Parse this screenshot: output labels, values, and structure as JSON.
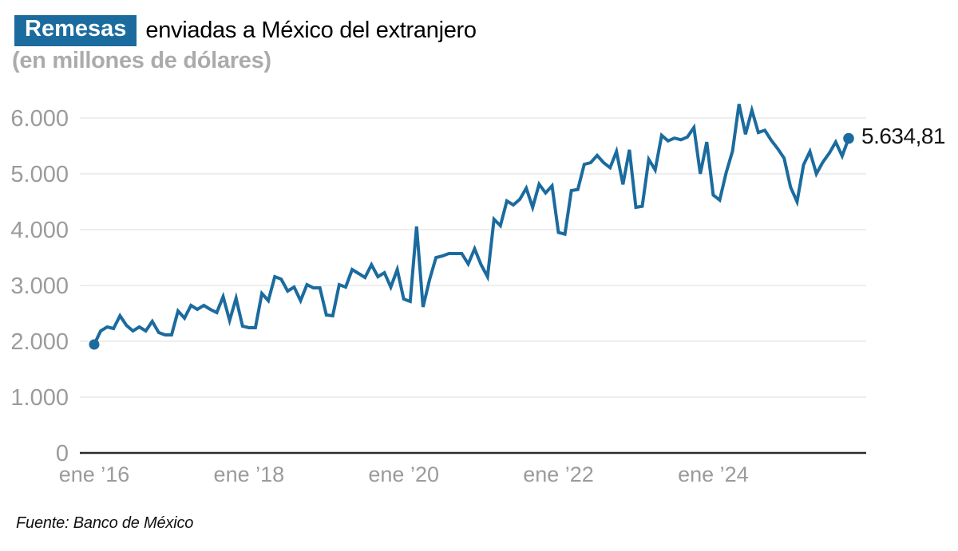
{
  "header": {
    "badge": "Remesas",
    "title": "enviadas a México del extranjero",
    "subtitle": "(en millones de dólares)"
  },
  "end_label": "5.634,81",
  "footer": {
    "source": "Fuente: Banco de México"
  },
  "colors": {
    "line": "#1b6b9e",
    "badge_bg": "#1b6b9e",
    "grid": "#e3e3e3",
    "zero_axis": "#2b2b2b",
    "tick_text": "#9b9b9b",
    "title_text": "#000000",
    "subtitle_text": "#ababab",
    "end_label_text": "#151515"
  },
  "chart_data": {
    "type": "line",
    "title": "Remesas enviadas a México del extranjero",
    "subtitle": "(en millones de dólares)",
    "unit": "millones de dólares",
    "frequency": "monthly",
    "x_range": {
      "start": "ene 2016",
      "end": "oct 2025"
    },
    "x_tick_labels": [
      "ene ’16",
      "ene ’18",
      "ene ’20",
      "ene ’22",
      "ene ’24"
    ],
    "x_tick_month_index": [
      0,
      24,
      48,
      72,
      96
    ],
    "y_tick_labels": [
      "0",
      "1.000",
      "2.000",
      "3.000",
      "4.000",
      "5.000",
      "6.000"
    ],
    "y_tick_values": [
      0,
      1000,
      2000,
      3000,
      4000,
      5000,
      6000
    ],
    "ylim": [
      0,
      6500
    ],
    "grid": "horizontal",
    "legend": "none",
    "last_value": 5634.81,
    "last_value_label": "5.634,81",
    "series": [
      {
        "name": "Remesas (millones de dólares)",
        "values": [
          1943,
          2186,
          2257,
          2229,
          2457,
          2286,
          2186,
          2257,
          2186,
          2357,
          2157,
          2114,
          2114,
          2543,
          2414,
          2643,
          2571,
          2643,
          2571,
          2514,
          2800,
          2371,
          2771,
          2271,
          2243,
          2243,
          2857,
          2729,
          3157,
          3114,
          2900,
          2971,
          2729,
          3014,
          2957,
          2957,
          2471,
          2457,
          3014,
          2971,
          3286,
          3214,
          3143,
          3371,
          3157,
          3229,
          2971,
          3286,
          2757,
          2714,
          4057,
          2614,
          3100,
          3500,
          3529,
          3571,
          3571,
          3571,
          3386,
          3657,
          3371,
          3157,
          4186,
          4071,
          4514,
          4443,
          4543,
          4743,
          4400,
          4814,
          4657,
          4786,
          3950,
          3920,
          4700,
          4720,
          5170,
          5200,
          5330,
          5200,
          5110,
          5400,
          4810,
          5430,
          4400,
          4420,
          5260,
          5070,
          5690,
          5590,
          5640,
          5610,
          5660,
          5830,
          5000,
          5570,
          4620,
          4530,
          5015,
          5410,
          6250,
          5710,
          6140,
          5740,
          5780,
          5600,
          5450,
          5280,
          4760,
          4500,
          5160,
          5400,
          5000,
          5210,
          5370,
          5570,
          5320,
          5634.81
        ]
      }
    ]
  }
}
